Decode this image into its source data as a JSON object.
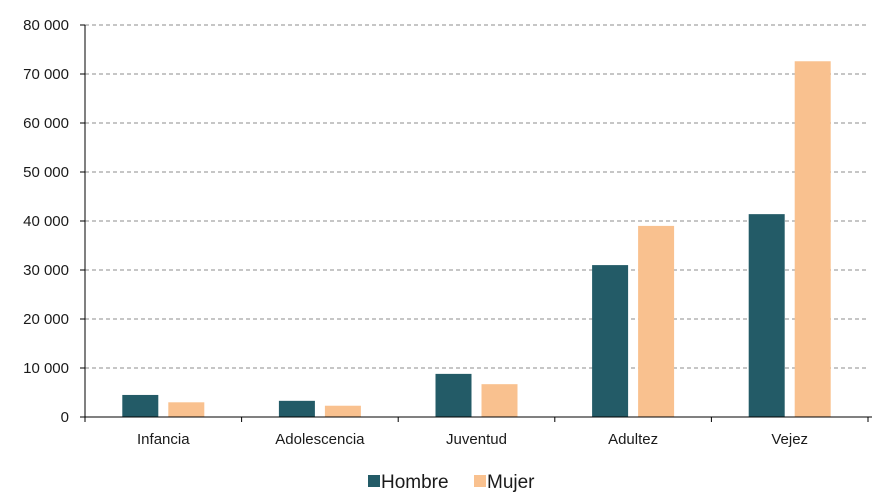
{
  "chart_data": {
    "type": "bar",
    "categories": [
      "Infancia",
      "Adolescencia",
      "Juventud",
      "Adultez",
      "Vejez"
    ],
    "series": [
      {
        "name": "Hombre",
        "values": [
          4500,
          3300,
          8800,
          31000,
          41400
        ],
        "color": "#235b67"
      },
      {
        "name": "Mujer",
        "values": [
          3000,
          2300,
          6700,
          39000,
          72600
        ],
        "color": "#f9c18f"
      }
    ],
    "ylim": [
      0,
      80000
    ],
    "yticks": [
      0,
      10000,
      20000,
      30000,
      40000,
      50000,
      60000,
      70000,
      80000
    ],
    "ytick_labels": [
      "0",
      "10 000",
      "20 000",
      "30 000",
      "40 000",
      "50 000",
      "60 000",
      "70 000",
      "80 000"
    ],
    "grid": "dashed-horizontal",
    "legend": "bottom-center",
    "title": "",
    "xlabel": "",
    "ylabel": ""
  }
}
